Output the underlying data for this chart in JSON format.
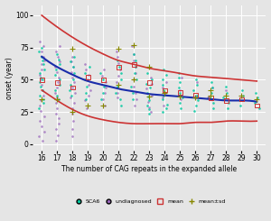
{
  "xlabel": "The number of CAG repeats in the expanded allele",
  "ylabel": "onset (year)",
  "xlim": [
    15.4,
    30.6
  ],
  "ylim": [
    -5,
    108
  ],
  "xticks": [
    16,
    17,
    18,
    19,
    20,
    21,
    22,
    23,
    24,
    25,
    26,
    27,
    28,
    29,
    30
  ],
  "yticks": [
    0,
    25,
    50,
    75,
    100
  ],
  "bg_color": "#e5e5e5",
  "grid_color": "#ffffff",
  "sca6_color": "#00c8a0",
  "undiag_color": "#9966bb",
  "mean_color": "#cc3333",
  "meansd_color": "#888800",
  "curve_mean_color": "#1a2daa",
  "curve_ci_color": "#cc3333",
  "sca6_data": [
    [
      16,
      75
    ],
    [
      16,
      72
    ],
    [
      16,
      68
    ],
    [
      16,
      65
    ],
    [
      16,
      62
    ],
    [
      16,
      58
    ],
    [
      16,
      55
    ],
    [
      16,
      52
    ],
    [
      16,
      50
    ],
    [
      16,
      48
    ],
    [
      16,
      45
    ],
    [
      16,
      42
    ],
    [
      16,
      38
    ],
    [
      16,
      35
    ],
    [
      16,
      32
    ],
    [
      16,
      28
    ],
    [
      17,
      70
    ],
    [
      17,
      66
    ],
    [
      17,
      62
    ],
    [
      17,
      58
    ],
    [
      17,
      54
    ],
    [
      17,
      50
    ],
    [
      17,
      46
    ],
    [
      17,
      42
    ],
    [
      17,
      38
    ],
    [
      17,
      35
    ],
    [
      18,
      68
    ],
    [
      18,
      64
    ],
    [
      18,
      60
    ],
    [
      18,
      55
    ],
    [
      18,
      50
    ],
    [
      18,
      46
    ],
    [
      18,
      42
    ],
    [
      18,
      38
    ],
    [
      19,
      60
    ],
    [
      19,
      55
    ],
    [
      19,
      50
    ],
    [
      19,
      45
    ],
    [
      19,
      40
    ],
    [
      19,
      35
    ],
    [
      20,
      55
    ],
    [
      20,
      50
    ],
    [
      20,
      45
    ],
    [
      20,
      40
    ],
    [
      20,
      35
    ],
    [
      21,
      65
    ],
    [
      21,
      60
    ],
    [
      21,
      55
    ],
    [
      21,
      50
    ],
    [
      21,
      45
    ],
    [
      21,
      40
    ],
    [
      21,
      35
    ],
    [
      21,
      30
    ],
    [
      22,
      70
    ],
    [
      22,
      65
    ],
    [
      22,
      60
    ],
    [
      22,
      55
    ],
    [
      22,
      50
    ],
    [
      22,
      45
    ],
    [
      22,
      40
    ],
    [
      22,
      35
    ],
    [
      23,
      55
    ],
    [
      23,
      50
    ],
    [
      23,
      47
    ],
    [
      23,
      44
    ],
    [
      23,
      40
    ],
    [
      23,
      37
    ],
    [
      23,
      34
    ],
    [
      23,
      30
    ],
    [
      23,
      27
    ],
    [
      23,
      24
    ],
    [
      24,
      58
    ],
    [
      24,
      54
    ],
    [
      24,
      50
    ],
    [
      24,
      46
    ],
    [
      24,
      42
    ],
    [
      24,
      38
    ],
    [
      24,
      35
    ],
    [
      24,
      31
    ],
    [
      24,
      28
    ],
    [
      24,
      25
    ],
    [
      25,
      55
    ],
    [
      25,
      52
    ],
    [
      25,
      48
    ],
    [
      25,
      44
    ],
    [
      25,
      40
    ],
    [
      25,
      36
    ],
    [
      25,
      32
    ],
    [
      25,
      28
    ],
    [
      26,
      50
    ],
    [
      26,
      46
    ],
    [
      26,
      42
    ],
    [
      26,
      38
    ],
    [
      26,
      34
    ],
    [
      26,
      30
    ],
    [
      26,
      26
    ],
    [
      27,
      48
    ],
    [
      27,
      44
    ],
    [
      27,
      40
    ],
    [
      27,
      36
    ],
    [
      27,
      32
    ],
    [
      27,
      28
    ],
    [
      28,
      45
    ],
    [
      28,
      40
    ],
    [
      28,
      36
    ],
    [
      28,
      32
    ],
    [
      28,
      28
    ],
    [
      29,
      42
    ],
    [
      29,
      38
    ],
    [
      29,
      34
    ],
    [
      29,
      30
    ],
    [
      30,
      40
    ],
    [
      30,
      36
    ],
    [
      30,
      32
    ],
    [
      30,
      28
    ]
  ],
  "undiag_data": [
    [
      16,
      80
    ],
    [
      16,
      76
    ],
    [
      16,
      72
    ],
    [
      16,
      68
    ],
    [
      16,
      65
    ],
    [
      16,
      62
    ],
    [
      16,
      58
    ],
    [
      16,
      54
    ],
    [
      16,
      50
    ],
    [
      16,
      46
    ],
    [
      16,
      42
    ],
    [
      16,
      38
    ],
    [
      16,
      34
    ],
    [
      16,
      30
    ],
    [
      16,
      26
    ],
    [
      16,
      22
    ],
    [
      16,
      18
    ],
    [
      16,
      14
    ],
    [
      16,
      10
    ],
    [
      16,
      6
    ],
    [
      16,
      3
    ],
    [
      17,
      76
    ],
    [
      17,
      72
    ],
    [
      17,
      68
    ],
    [
      17,
      64
    ],
    [
      17,
      60
    ],
    [
      17,
      56
    ],
    [
      17,
      52
    ],
    [
      17,
      48
    ],
    [
      17,
      44
    ],
    [
      17,
      40
    ],
    [
      17,
      36
    ],
    [
      17,
      32
    ],
    [
      17,
      28
    ],
    [
      17,
      24
    ],
    [
      17,
      20
    ],
    [
      17,
      16
    ],
    [
      17,
      12
    ],
    [
      17,
      7
    ],
    [
      17,
      3
    ],
    [
      18,
      68
    ],
    [
      18,
      64
    ],
    [
      18,
      60
    ],
    [
      18,
      56
    ],
    [
      18,
      52
    ],
    [
      18,
      48
    ],
    [
      18,
      44
    ],
    [
      18,
      40
    ],
    [
      18,
      36
    ],
    [
      18,
      32
    ],
    [
      18,
      28
    ],
    [
      18,
      24
    ],
    [
      18,
      18
    ],
    [
      18,
      12
    ],
    [
      18,
      6
    ],
    [
      19,
      62
    ],
    [
      19,
      58
    ],
    [
      19,
      54
    ],
    [
      19,
      50
    ],
    [
      19,
      46
    ],
    [
      19,
      42
    ],
    [
      19,
      38
    ],
    [
      19,
      34
    ],
    [
      19,
      28
    ],
    [
      20,
      58
    ],
    [
      20,
      53
    ],
    [
      20,
      48
    ],
    [
      20,
      44
    ],
    [
      20,
      40
    ],
    [
      20,
      35
    ],
    [
      20,
      30
    ],
    [
      21,
      72
    ],
    [
      21,
      68
    ],
    [
      21,
      63
    ],
    [
      21,
      58
    ],
    [
      21,
      53
    ],
    [
      21,
      48
    ],
    [
      21,
      44
    ],
    [
      21,
      40
    ],
    [
      21,
      36
    ],
    [
      22,
      76
    ],
    [
      22,
      70
    ],
    [
      22,
      65
    ],
    [
      22,
      60
    ],
    [
      22,
      55
    ],
    [
      22,
      50
    ],
    [
      22,
      45
    ],
    [
      22,
      40
    ],
    [
      22,
      35
    ],
    [
      22,
      30
    ],
    [
      23,
      52
    ],
    [
      23,
      47
    ],
    [
      23,
      43
    ],
    [
      23,
      38
    ],
    [
      23,
      33
    ],
    [
      23,
      29
    ],
    [
      23,
      25
    ],
    [
      24,
      48
    ],
    [
      24,
      44
    ],
    [
      24,
      40
    ],
    [
      24,
      36
    ],
    [
      24,
      30
    ],
    [
      25,
      52
    ],
    [
      25,
      42
    ],
    [
      25,
      35
    ],
    [
      26,
      48
    ],
    [
      26,
      38
    ],
    [
      27,
      44
    ],
    [
      27,
      36
    ],
    [
      28,
      42
    ]
  ],
  "mean_data": [
    [
      16,
      50
    ],
    [
      17,
      48
    ],
    [
      18,
      44
    ],
    [
      19,
      52
    ],
    [
      20,
      50
    ],
    [
      21,
      60
    ],
    [
      22,
      62
    ],
    [
      23,
      48
    ],
    [
      24,
      42
    ],
    [
      25,
      40
    ],
    [
      26,
      38
    ],
    [
      27,
      36
    ],
    [
      28,
      34
    ],
    [
      29,
      35
    ],
    [
      30,
      30
    ]
  ],
  "meansd_data": [
    [
      16,
      35
    ],
    [
      17,
      35
    ],
    [
      18,
      25
    ],
    [
      18,
      74
    ],
    [
      19,
      30
    ],
    [
      20,
      30
    ],
    [
      21,
      46
    ],
    [
      21,
      74
    ],
    [
      22,
      50
    ],
    [
      22,
      77
    ],
    [
      23,
      37
    ],
    [
      23,
      60
    ],
    [
      24,
      40
    ],
    [
      25,
      37
    ],
    [
      26,
      36
    ],
    [
      27,
      38
    ],
    [
      27,
      42
    ],
    [
      28,
      38
    ],
    [
      29,
      38
    ],
    [
      30,
      35
    ]
  ],
  "curve_x_pts": [
    16,
    17,
    18,
    19,
    20,
    21,
    22,
    23,
    24,
    25,
    26,
    27,
    28,
    29,
    30
  ],
  "curve_mean_y": [
    68,
    60,
    54,
    49,
    46,
    43,
    41,
    39,
    38,
    37,
    36,
    35,
    34,
    34,
    33
  ],
  "curve_upper_y": [
    100,
    91,
    83,
    76,
    70,
    65,
    62,
    59,
    57,
    55,
    53,
    52,
    51,
    50,
    49
  ],
  "curve_lower_y": [
    42,
    34,
    27,
    22,
    19,
    17,
    16,
    16,
    16,
    16,
    17,
    17,
    18,
    18,
    18
  ]
}
